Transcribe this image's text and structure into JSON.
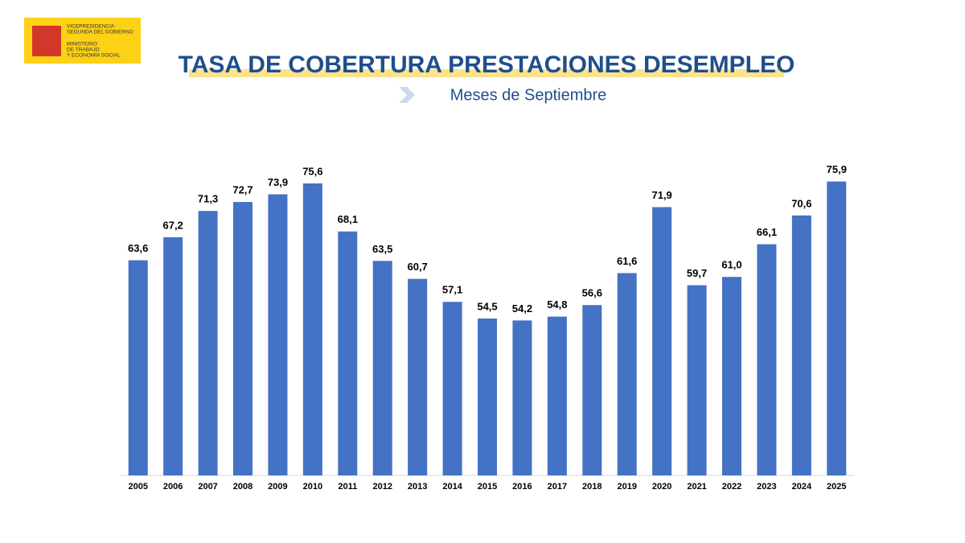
{
  "logo": {
    "lines": [
      "VICEPRESIDENCIA",
      "SEGUNDA DEL GOBIERNO",
      "MINISTERIO",
      "DE TRABAJO",
      "Y ECONOMÍA SOCIAL"
    ]
  },
  "chart_data": {
    "type": "bar",
    "title": "TASA DE COBERTURA PRESTACIONES DESEMPLEO",
    "subtitle": "Meses de Septiembre",
    "categories": [
      "2005",
      "2006",
      "2007",
      "2008",
      "2009",
      "2010",
      "2011",
      "2012",
      "2013",
      "2014",
      "2015",
      "2016",
      "2017",
      "2018",
      "2019",
      "2020",
      "2021",
      "2022",
      "2023",
      "2024",
      "2025"
    ],
    "values": [
      63.6,
      67.2,
      71.3,
      72.7,
      73.9,
      75.6,
      68.1,
      63.5,
      60.7,
      57.1,
      54.5,
      54.2,
      54.8,
      56.6,
      61.6,
      71.9,
      59.7,
      61.0,
      66.1,
      70.6,
      75.9
    ],
    "value_labels": [
      "63,6",
      "67,2",
      "71,3",
      "72,7",
      "73,9",
      "75,6",
      "68,1",
      "63,5",
      "60,7",
      "57,1",
      "54,5",
      "54,2",
      "54,8",
      "56,6",
      "61,6",
      "71,9",
      "59,7",
      "61,0",
      "66,1",
      "70,6",
      "75,9"
    ],
    "color": "#4472c4",
    "ylim": [
      30,
      80
    ]
  }
}
